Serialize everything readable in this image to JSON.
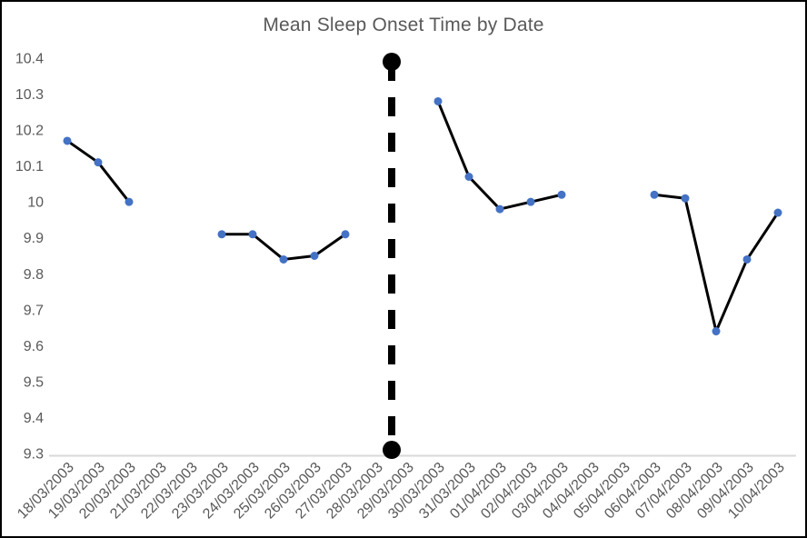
{
  "chart_data": {
    "type": "line",
    "title": "Mean Sleep Onset Time by Date",
    "xlabel": "",
    "ylabel": "",
    "categories": [
      "18/03/2003",
      "19/03/2003",
      "20/03/2003",
      "21/03/2003",
      "22/03/2003",
      "23/03/2003",
      "24/03/2003",
      "25/03/2003",
      "26/03/2003",
      "27/03/2003",
      "28/03/2003",
      "29/03/2003",
      "30/03/2003",
      "31/03/2003",
      "01/04/2003",
      "02/04/2003",
      "03/04/2003",
      "04/04/2003",
      "05/04/2003",
      "06/04/2003",
      "07/04/2003",
      "08/04/2003",
      "09/04/2003",
      "10/04/2003"
    ],
    "series": [
      {
        "values": [
          10.17,
          10.11,
          10.0,
          null,
          null,
          9.91,
          9.91,
          9.84,
          9.85,
          9.91,
          null,
          null,
          10.28,
          10.07,
          9.98,
          10.0,
          10.02,
          null,
          null,
          10.02,
          10.01,
          9.64,
          9.84,
          9.97
        ]
      }
    ],
    "ylim": [
      9.3,
      10.4
    ],
    "ytick_step": 0.1,
    "yticks": [
      "10.4",
      "10.3",
      "10.2",
      "10.1",
      "10",
      "9.9",
      "9.8",
      "9.7",
      "9.6",
      "9.5",
      "9.4",
      "9.3"
    ],
    "grid": false,
    "legend": "none",
    "divider": {
      "x_between": [
        "28/03/2003",
        "29/03/2003"
      ],
      "y_top": 10.39,
      "y_bottom": 9.31,
      "style": "dashed",
      "end_dots": true
    },
    "colors": {
      "line": "#000000",
      "marker": "#4472C4",
      "divider": "#000000",
      "title_text": "#595959",
      "axis_text": "#595959",
      "axis_line": "#D9D9D9",
      "frame_border": "#000000",
      "background": "#FFFFFF"
    }
  }
}
